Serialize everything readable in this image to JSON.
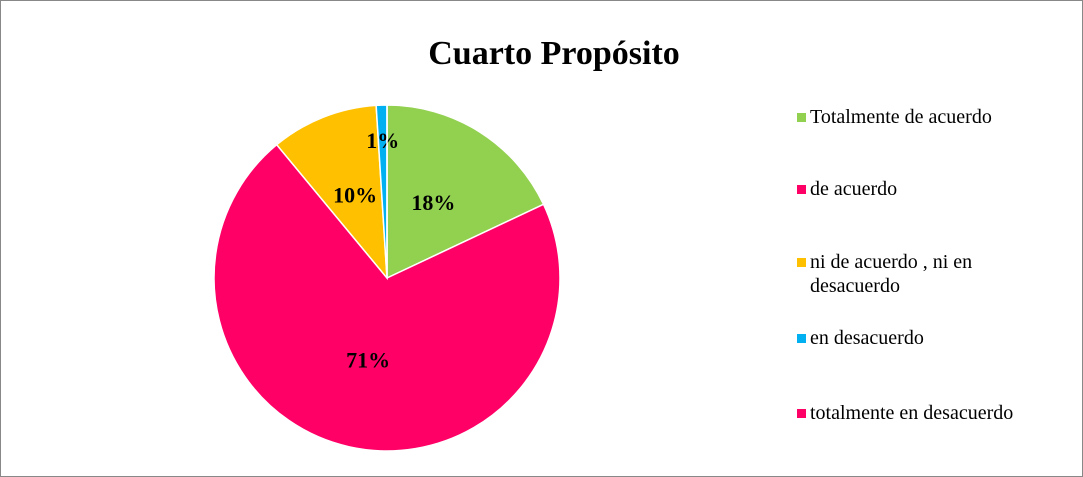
{
  "chart_data": {
    "type": "pie",
    "title": "Cuarto Propósito",
    "categories": [
      "Totalmente de acuerdo",
      "de acuerdo",
      "ni de acuerdo , ni en desacuerdo",
      "en desacuerdo",
      "totalmente en desacuerdo"
    ],
    "values": [
      18,
      71,
      10,
      1,
      0
    ],
    "value_labels": [
      "18%",
      "71%",
      "10%",
      "1%",
      null
    ],
    "colors": [
      "#92d050",
      "#ff0066",
      "#ffc000",
      "#00b0f0",
      "#ff0066"
    ],
    "legend": "right"
  }
}
